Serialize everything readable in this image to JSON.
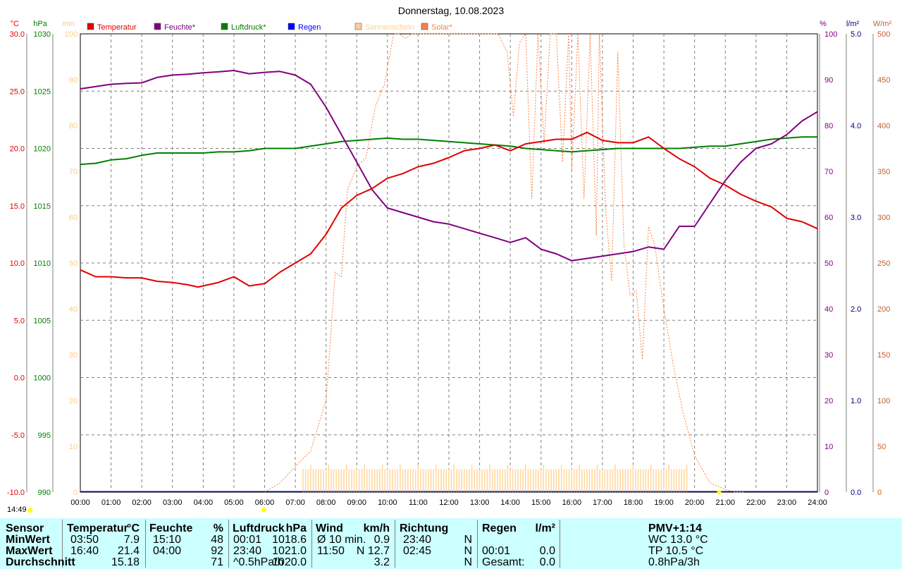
{
  "title": "Donnerstag, 10.08.2023",
  "time_now": "14:49",
  "axes": {
    "temp": {
      "unit": "°C",
      "ticks": [
        "30.0",
        "25.0",
        "20.0",
        "15.0",
        "10.0",
        "5.0",
        "0.0",
        "-5.0",
        "-10.0"
      ],
      "color": "#e00000"
    },
    "pressure": {
      "unit": "hPa",
      "ticks": [
        "1030",
        "1025",
        "1020",
        "1015",
        "1010",
        "1005",
        "1000",
        "995",
        "990"
      ],
      "color": "#008000"
    },
    "sunmin": {
      "unit": "min",
      "ticks": [
        "100",
        "90",
        "80",
        "70",
        "60",
        "50",
        "40",
        "30",
        "20",
        "10",
        "0"
      ],
      "color": "#ffcc80"
    },
    "humidity": {
      "unit": "%",
      "ticks": [
        "100",
        "90",
        "80",
        "70",
        "60",
        "50",
        "40",
        "30",
        "20",
        "10",
        "0"
      ],
      "color": "#800080"
    },
    "rain": {
      "unit": "l/m²",
      "ticks": [
        "5.0",
        "4.0",
        "3.0",
        "2.0",
        "1.0",
        "0.0"
      ],
      "color": "#000080"
    },
    "solar": {
      "unit": "W/m²",
      "ticks": [
        "500",
        "450",
        "400",
        "350",
        "300",
        "250",
        "200",
        "150",
        "100",
        "50",
        "0"
      ],
      "color": "#c06030"
    },
    "x_ticks": [
      "00:00",
      "01:00",
      "02:00",
      "03:00",
      "04:00",
      "05:00",
      "06:00",
      "07:00",
      "08:00",
      "09:00",
      "10:00",
      "11:00",
      "12:00",
      "13:00",
      "14:00",
      "15:00",
      "16:00",
      "17:00",
      "18:00",
      "19:00",
      "20:00",
      "21:00",
      "22:00",
      "23:00",
      "24:00"
    ]
  },
  "legend": [
    {
      "label": "Temperatur",
      "color": "#e00000"
    },
    {
      "label": "Feuchte*",
      "color": "#800080"
    },
    {
      "label": "Luftdruck*",
      "color": "#008000"
    },
    {
      "label": "Regen",
      "color": "#0000ff"
    },
    {
      "label": "Sonnenschein",
      "color": "#ffcc99"
    },
    {
      "label": "Solar*",
      "color": "#ff8040"
    }
  ],
  "chart_data": {
    "type": "line",
    "title": "Donnerstag, 10.08.2023",
    "x_unit": "hour",
    "xlim": [
      0,
      24
    ],
    "series": [
      {
        "name": "Temperatur",
        "axis": "temp",
        "x": [
          0,
          0.5,
          1,
          1.5,
          2,
          2.5,
          3,
          3.5,
          3.83,
          4.5,
          5,
          5.5,
          6,
          6.5,
          7,
          7.5,
          8,
          8.5,
          9,
          9.5,
          10,
          10.5,
          11,
          11.5,
          12,
          12.5,
          13,
          13.5,
          14,
          14.5,
          15,
          15.5,
          16,
          16.5,
          17,
          17.5,
          18,
          18.5,
          19,
          19.5,
          20,
          20.5,
          21,
          21.5,
          22,
          22.5,
          23,
          23.5,
          24
        ],
        "values": [
          9.4,
          8.8,
          8.8,
          8.7,
          8.7,
          8.4,
          8.3,
          8.1,
          7.9,
          8.3,
          8.8,
          8.0,
          8.2,
          9.2,
          10.0,
          10.8,
          12.5,
          14.8,
          15.9,
          16.5,
          17.4,
          17.8,
          18.4,
          18.7,
          19.2,
          19.8,
          20.0,
          20.3,
          19.8,
          20.4,
          20.6,
          20.8,
          20.8,
          21.4,
          20.7,
          20.5,
          20.5,
          21.0,
          20.0,
          19.1,
          18.4,
          17.4,
          16.8,
          16.0,
          15.4,
          14.9,
          13.9,
          13.6,
          13.0
        ]
      },
      {
        "name": "Feuchte*",
        "axis": "humidity",
        "x": [
          0,
          0.5,
          1,
          1.5,
          2,
          2.5,
          3,
          3.5,
          4,
          4.5,
          5,
          5.5,
          6,
          6.5,
          7,
          7.5,
          8,
          8.5,
          9,
          9.5,
          10,
          10.5,
          11,
          11.5,
          12,
          12.5,
          13,
          13.5,
          14,
          14.5,
          15,
          15.5,
          16,
          16.5,
          17,
          17.5,
          18,
          18.5,
          19,
          19.5,
          20,
          20.5,
          21,
          21.5,
          22,
          22.5,
          23,
          23.5,
          24
        ],
        "values": [
          88,
          88.5,
          89,
          89.2,
          89.3,
          90.5,
          91,
          91.2,
          91.5,
          91.7,
          92,
          91.3,
          91.6,
          91.8,
          91,
          89,
          84,
          78,
          72,
          66,
          62,
          61,
          60,
          59,
          58.5,
          57.5,
          56.5,
          55.5,
          54.5,
          55.5,
          53,
          52,
          50.5,
          51,
          51.5,
          52,
          52.5,
          53.5,
          53,
          58,
          58,
          63,
          68,
          72,
          75,
          76,
          78,
          81,
          83
        ]
      },
      {
        "name": "Luftdruck*",
        "axis": "pressure",
        "x": [
          0,
          0.5,
          1,
          1.5,
          2,
          2.5,
          3,
          3.5,
          4,
          4.5,
          5,
          5.5,
          6,
          6.5,
          7,
          7.5,
          8,
          8.5,
          9,
          9.5,
          10,
          10.5,
          11,
          11.5,
          12,
          12.5,
          13,
          13.5,
          14,
          14.5,
          15,
          15.5,
          16,
          16.5,
          17,
          17.5,
          18,
          18.5,
          19,
          19.5,
          20,
          20.5,
          21,
          21.5,
          22,
          22.5,
          23,
          23.5,
          24
        ],
        "values": [
          1018.6,
          1018.7,
          1019.0,
          1019.1,
          1019.4,
          1019.6,
          1019.6,
          1019.6,
          1019.6,
          1019.7,
          1019.7,
          1019.8,
          1020.0,
          1020.0,
          1020.0,
          1020.2,
          1020.4,
          1020.6,
          1020.7,
          1020.8,
          1020.9,
          1020.8,
          1020.8,
          1020.7,
          1020.6,
          1020.5,
          1020.4,
          1020.3,
          1020.2,
          1020.0,
          1019.9,
          1019.8,
          1019.7,
          1019.8,
          1019.9,
          1020.0,
          1020.0,
          1020.0,
          1020.0,
          1020.0,
          1020.1,
          1020.2,
          1020.2,
          1020.4,
          1020.6,
          1020.8,
          1020.9,
          1021.0,
          1021.0
        ]
      },
      {
        "name": "Solar*",
        "axis": "solar",
        "x": [
          6,
          6.5,
          7,
          7.5,
          8,
          8.3,
          8.5,
          8.7,
          9,
          9.3,
          9.6,
          9.9,
          10.2,
          10.4,
          10.6,
          10.8,
          11,
          11.3,
          11.6,
          12,
          12.5,
          13,
          13.3,
          13.6,
          13.9,
          14.1,
          14.3,
          14.5,
          14.7,
          14.9,
          15.1,
          15.3,
          15.5,
          15.7,
          15.9,
          16.0,
          16.2,
          16.4,
          16.6,
          16.8,
          16.9,
          17.1,
          17.3,
          17.5,
          17.7,
          17.9,
          18.1,
          18.3,
          18.5,
          18.7,
          19,
          19.3,
          19.6,
          20,
          20.5,
          21,
          21.3,
          21.6
        ],
        "values": [
          0,
          10,
          28,
          45,
          100,
          240,
          235,
          330,
          355,
          365,
          420,
          445,
          500,
          500,
          495,
          500,
          500,
          500,
          500,
          500,
          500,
          500,
          500,
          500,
          480,
          410,
          490,
          500,
          320,
          500,
          380,
          500,
          500,
          360,
          500,
          350,
          500,
          320,
          500,
          280,
          500,
          310,
          230,
          480,
          270,
          215,
          220,
          145,
          290,
          270,
          200,
          140,
          90,
          40,
          10,
          3,
          0,
          0
        ]
      },
      {
        "name": "Sonnenschein",
        "axis": "sunmin",
        "type": "bar",
        "x_from": 7.25,
        "x_to": 19.75,
        "step_h": 0.0833,
        "typical_value": 5
      }
    ],
    "rain_total": 0.0
  },
  "stats": {
    "headers": {
      "sensor": "Sensor",
      "temp": "Temperatur",
      "temp_u": "°C",
      "hum": "Feuchte",
      "hum_u": "%",
      "press": "Luftdruck",
      "press_u": "hPa",
      "wind": "Wind",
      "wind_u": "km/h",
      "dir": "Richtung",
      "rain": "Regen",
      "rain_u": "l/m²",
      "pmv": "PMV+1:14"
    },
    "rows": [
      {
        "label": "MinWert",
        "temp_t": "03:50",
        "temp_v": "7.9",
        "hum_t": "15:10",
        "hum_v": "48",
        "press_t": "00:01",
        "press_v": "1018.6",
        "wind_t": "Ø 10 min.",
        "wind_v": "0.9",
        "dir_t": "23:40",
        "dir_v": "N",
        "rain_t": "",
        "rain_v": "",
        "pmv": "WC 13.0 °C"
      },
      {
        "label": "MaxWert",
        "temp_t": "16:40",
        "temp_v": "21.4",
        "hum_t": "04:00",
        "hum_v": "92",
        "press_t": "23:40",
        "press_v": "1021.0",
        "wind_t": "11:50",
        "wind_v": "N 12.7",
        "dir_t": "02:45",
        "dir_v": "N",
        "rain_t": "00:01",
        "rain_v": "0.0",
        "pmv": "TP 10.5 °C"
      },
      {
        "label": "Durchschnitt",
        "temp_t": "",
        "temp_v": "15.18",
        "hum_t": "",
        "hum_v": "71",
        "press_t": "^0.5hPa/h",
        "press_v": "1020.0",
        "wind_t": "",
        "wind_v": "3.2",
        "dir_t": "",
        "dir_v": "N",
        "rain_t": "Gesamt:",
        "rain_v": "0.0",
        "pmv": "0.8hPa/3h"
      }
    ]
  }
}
